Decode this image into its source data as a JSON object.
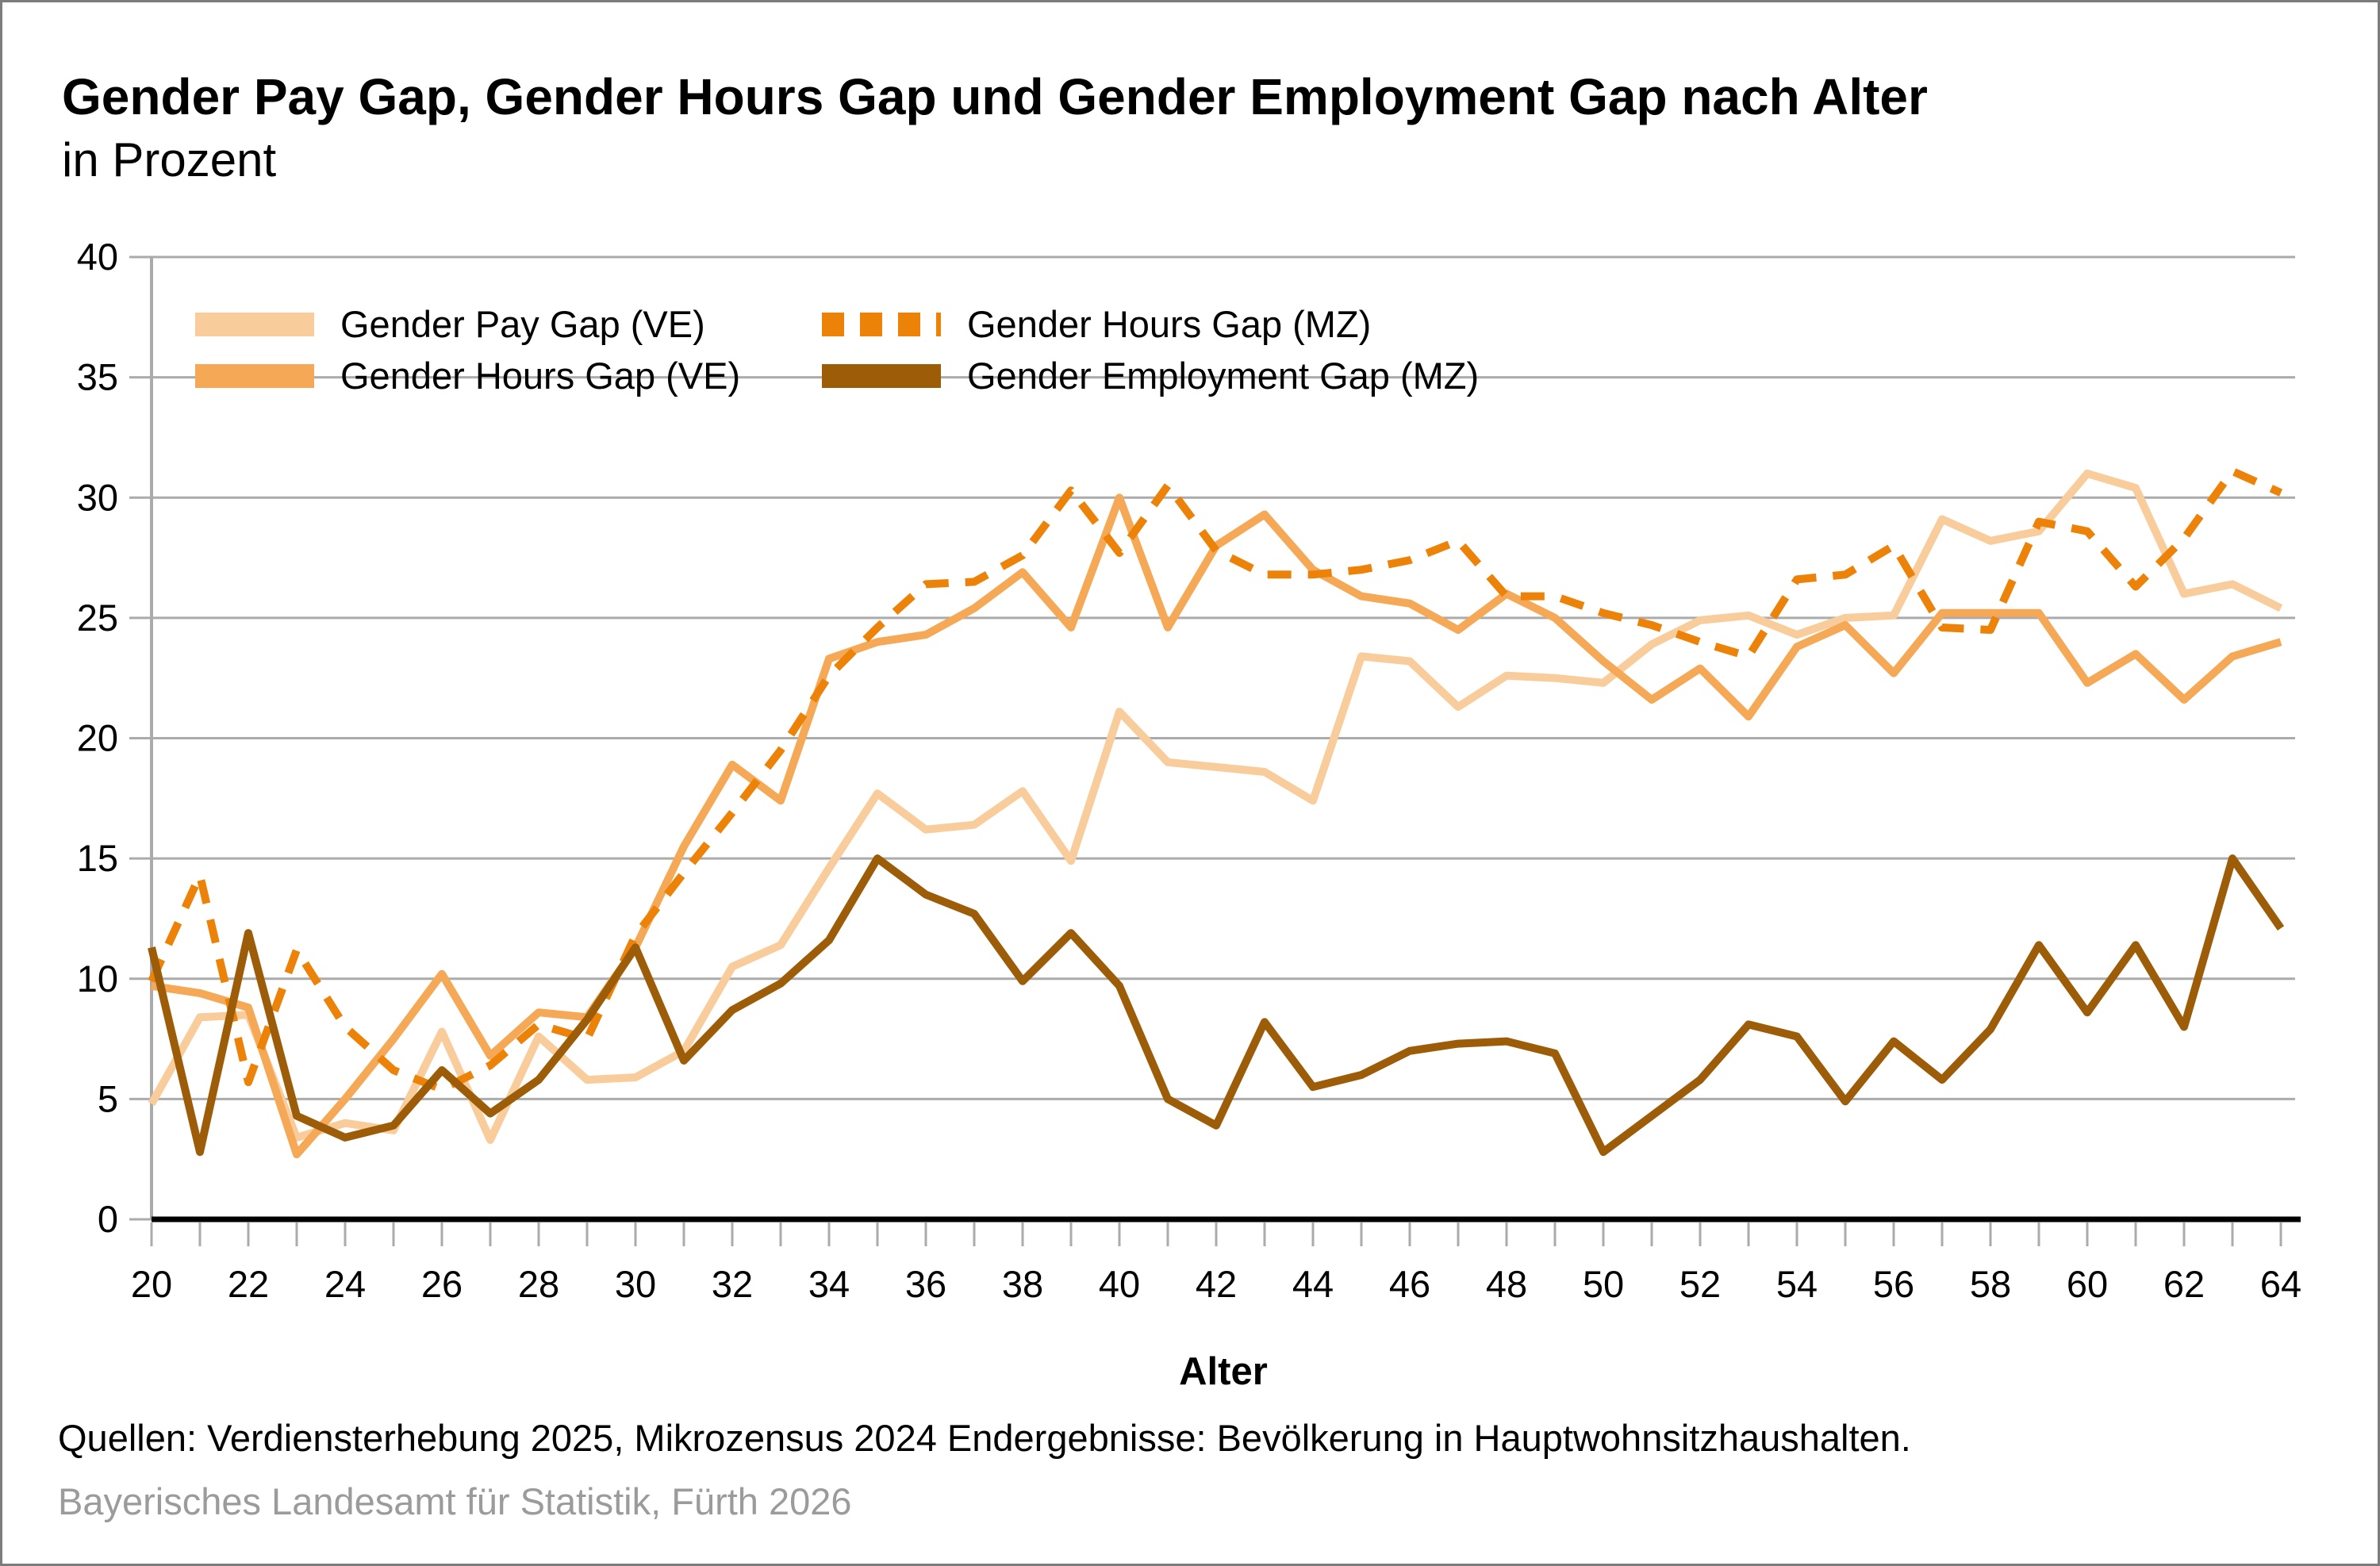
{
  "header": {
    "title": "Gender Pay Gap, Gender Hours Gap und Gender Employment Gap nach Alter",
    "subtitle": "in Prozent"
  },
  "source_line": "Quellen: Verdiensterhebung 2025, Mikrozensus 2024 Endergebnisse: Bevölkerung in Hauptwohnsitzhaushalten.",
  "footer_line": "Bayerisches Landesamt für Statistik, Fürth 2026",
  "chart_data": {
    "type": "line",
    "title": "Gender Pay Gap, Gender Hours Gap und Gender Employment Gap nach Alter",
    "subtitle": "in Prozent",
    "xlabel": "Alter",
    "ylabel": "",
    "ylim": [
      0,
      40
    ],
    "xlim": [
      20,
      64
    ],
    "grid": true,
    "legend_position": "top-left",
    "y_ticks": [
      0,
      5,
      10,
      15,
      20,
      25,
      30,
      35,
      40
    ],
    "x_tick_labels": [
      20,
      22,
      24,
      26,
      28,
      30,
      32,
      34,
      36,
      38,
      40,
      42,
      44,
      46,
      48,
      50,
      52,
      54,
      56,
      58,
      60,
      62,
      64
    ],
    "x": [
      20,
      21,
      22,
      23,
      24,
      25,
      26,
      27,
      28,
      29,
      30,
      31,
      32,
      33,
      34,
      35,
      36,
      37,
      38,
      39,
      40,
      41,
      42,
      43,
      44,
      45,
      46,
      47,
      48,
      49,
      50,
      51,
      52,
      53,
      54,
      55,
      56,
      57,
      58,
      59,
      60,
      61,
      62,
      63,
      64
    ],
    "series": [
      {
        "name": "Gender Pay Gap (VE)",
        "color": "#F8CC9B",
        "dash": false,
        "values": [
          4.8,
          8.4,
          8.5,
          3.4,
          4.0,
          3.7,
          7.8,
          3.3,
          7.6,
          5.8,
          5.9,
          7.0,
          10.5,
          11.4,
          14.6,
          17.7,
          16.2,
          16.4,
          17.8,
          14.9,
          21.1,
          19.0,
          18.8,
          18.6,
          17.4,
          23.4,
          23.2,
          21.3,
          22.6,
          22.5,
          22.3,
          23.9,
          24.9,
          25.1,
          24.3,
          25.0,
          25.1,
          29.1,
          28.2,
          28.6,
          31.0,
          30.4,
          26.0,
          26.4,
          25.4
        ]
      },
      {
        "name": "Gender Hours Gap (VE)",
        "color": "#F5A855",
        "dash": false,
        "values": [
          9.7,
          9.4,
          8.8,
          2.7,
          5.0,
          7.5,
          10.2,
          6.8,
          8.6,
          8.4,
          11.3,
          15.5,
          18.9,
          17.4,
          23.3,
          24.0,
          24.3,
          25.4,
          26.9,
          24.6,
          30.0,
          24.6,
          28.0,
          29.3,
          27.0,
          25.9,
          25.6,
          24.5,
          26.0,
          25.0,
          23.2,
          21.6,
          22.9,
          20.9,
          23.8,
          24.7,
          22.7,
          25.2,
          25.2,
          25.2,
          22.3,
          23.5,
          21.6,
          23.4,
          24.0
        ]
      },
      {
        "name": "Gender Hours Gap (MZ)",
        "color": "#ED8208",
        "dash": true,
        "values": [
          9.9,
          14.3,
          5.7,
          11.2,
          8.0,
          6.2,
          5.4,
          6.4,
          8.1,
          7.5,
          11.8,
          14.4,
          16.9,
          19.5,
          22.6,
          24.6,
          26.4,
          26.5,
          27.6,
          30.3,
          27.7,
          30.5,
          27.8,
          26.8,
          26.8,
          27.0,
          27.4,
          28.2,
          25.9,
          25.9,
          25.2,
          24.7,
          24.0,
          23.4,
          26.6,
          26.8,
          28.0,
          24.6,
          24.5,
          29.0,
          28.6,
          26.3,
          28.3,
          31.1,
          30.2
        ]
      },
      {
        "name": "Gender Employment Gap (MZ)",
        "color": "#9C5C08",
        "dash": false,
        "values": [
          11.3,
          2.8,
          11.9,
          4.3,
          3.4,
          3.9,
          6.2,
          4.4,
          5.8,
          8.3,
          11.3,
          6.6,
          8.7,
          9.8,
          11.6,
          15.0,
          13.5,
          12.7,
          9.9,
          11.9,
          9.7,
          5.0,
          3.9,
          8.2,
          5.5,
          6.0,
          7.0,
          7.3,
          7.4,
          6.9,
          2.8,
          4.3,
          5.8,
          8.1,
          7.6,
          4.9,
          7.4,
          5.8,
          7.9,
          11.4,
          8.6,
          11.4,
          8.0,
          15.0,
          12.1
        ]
      }
    ],
    "legend_layout": [
      [
        0,
        2
      ],
      [
        1,
        3
      ]
    ],
    "axis_colors": {
      "grid": "#ABABAB",
      "zero_axis": "#000000",
      "tick": "#ABABAB",
      "label": "#000000"
    }
  }
}
